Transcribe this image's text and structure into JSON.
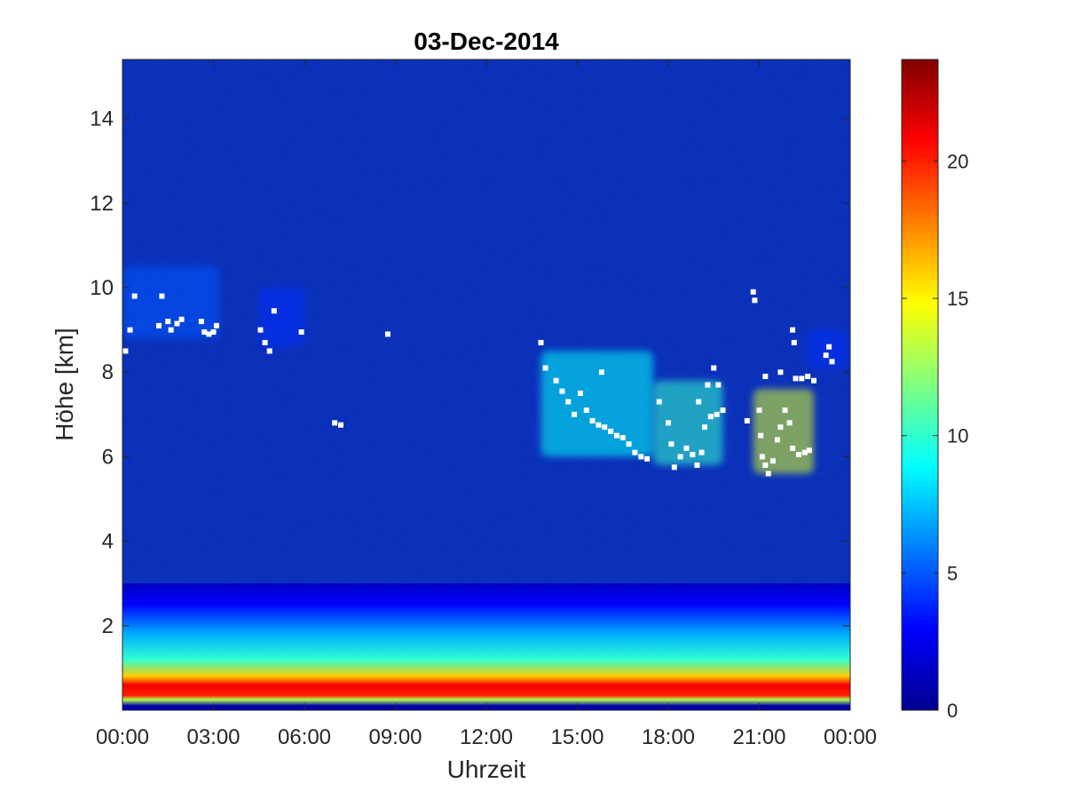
{
  "chart_data": {
    "type": "heatmap",
    "title": "03-Dec-2014",
    "xlabel": "Uhrzeit",
    "ylabel": "Höhe [km]",
    "x_range_hours": [
      0,
      24
    ],
    "ylim": [
      0,
      15.4
    ],
    "x_ticks": [
      {
        "value": 0,
        "label": "00:00"
      },
      {
        "value": 3,
        "label": "03:00"
      },
      {
        "value": 6,
        "label": "06:00"
      },
      {
        "value": 9,
        "label": "09:00"
      },
      {
        "value": 12,
        "label": "12:00"
      },
      {
        "value": 15,
        "label": "15:00"
      },
      {
        "value": 18,
        "label": "18:00"
      },
      {
        "value": 21,
        "label": "21:00"
      },
      {
        "value": 24,
        "label": "00:00"
      }
    ],
    "y_ticks": [
      {
        "value": 2,
        "label": "2"
      },
      {
        "value": 4,
        "label": "4"
      },
      {
        "value": 6,
        "label": "6"
      },
      {
        "value": 8,
        "label": "8"
      },
      {
        "value": 10,
        "label": "10"
      },
      {
        "value": 12,
        "label": "12"
      },
      {
        "value": 14,
        "label": "14"
      }
    ],
    "colorbar": {
      "colormap": "jet",
      "range": [
        0,
        23.7
      ],
      "ticks": [
        {
          "value": 0,
          "label": "0"
        },
        {
          "value": 5,
          "label": "5"
        },
        {
          "value": 10,
          "label": "10"
        },
        {
          "value": 15,
          "label": "15"
        },
        {
          "value": 20,
          "label": "20"
        }
      ]
    },
    "boundary_layer_profile": [
      {
        "height_km": 0.1,
        "value": 1
      },
      {
        "height_km": 0.25,
        "value": 13
      },
      {
        "height_km": 0.35,
        "value": 20
      },
      {
        "height_km": 0.6,
        "value": 21
      },
      {
        "height_km": 0.8,
        "value": 16
      },
      {
        "height_km": 1.2,
        "value": 10
      },
      {
        "height_km": 1.8,
        "value": 7
      },
      {
        "height_km": 2.5,
        "value": 3
      },
      {
        "height_km": 3.0,
        "value": 1.5
      }
    ],
    "cloud_layers": [
      {
        "x0": 0.0,
        "x1": 3.2,
        "base_km": 8.8,
        "top_km": 10.5,
        "value": 5
      },
      {
        "x0": 4.5,
        "x1": 6.0,
        "base_km": 8.6,
        "top_km": 10.0,
        "value": 4
      },
      {
        "x0": 13.8,
        "x1": 17.5,
        "base_km": 6.0,
        "top_km": 8.5,
        "value": 9
      },
      {
        "x0": 17.5,
        "x1": 19.8,
        "base_km": 5.8,
        "top_km": 7.8,
        "value": 10
      },
      {
        "x0": 20.8,
        "x1": 22.8,
        "base_km": 5.6,
        "top_km": 7.6,
        "value": 14
      },
      {
        "x0": 22.6,
        "x1": 23.9,
        "base_km": 8.1,
        "top_km": 9.0,
        "value": 4
      }
    ],
    "cloud_base_points": [
      {
        "x": 0.1,
        "y": 8.5
      },
      {
        "x": 0.25,
        "y": 9.0
      },
      {
        "x": 0.4,
        "y": 9.8
      },
      {
        "x": 1.3,
        "y": 9.8
      },
      {
        "x": 1.2,
        "y": 9.1
      },
      {
        "x": 1.5,
        "y": 9.2
      },
      {
        "x": 1.6,
        "y": 9.0
      },
      {
        "x": 1.8,
        "y": 9.15
      },
      {
        "x": 1.95,
        "y": 9.25
      },
      {
        "x": 2.6,
        "y": 9.2
      },
      {
        "x": 2.7,
        "y": 8.95
      },
      {
        "x": 2.85,
        "y": 8.9
      },
      {
        "x": 3.0,
        "y": 8.95
      },
      {
        "x": 3.1,
        "y": 9.1
      },
      {
        "x": 4.55,
        "y": 9.0
      },
      {
        "x": 4.7,
        "y": 8.7
      },
      {
        "x": 4.85,
        "y": 8.5
      },
      {
        "x": 5.0,
        "y": 9.45
      },
      {
        "x": 5.9,
        "y": 8.95
      },
      {
        "x": 7.0,
        "y": 6.8
      },
      {
        "x": 7.2,
        "y": 6.75
      },
      {
        "x": 8.75,
        "y": 8.9
      },
      {
        "x": 13.8,
        "y": 8.7
      },
      {
        "x": 13.95,
        "y": 8.1
      },
      {
        "x": 14.3,
        "y": 7.8
      },
      {
        "x": 14.5,
        "y": 7.55
      },
      {
        "x": 14.7,
        "y": 7.3
      },
      {
        "x": 14.9,
        "y": 7.0
      },
      {
        "x": 15.1,
        "y": 7.5
      },
      {
        "x": 15.3,
        "y": 7.1
      },
      {
        "x": 15.5,
        "y": 6.85
      },
      {
        "x": 15.7,
        "y": 6.75
      },
      {
        "x": 15.9,
        "y": 6.7
      },
      {
        "x": 16.1,
        "y": 6.6
      },
      {
        "x": 16.3,
        "y": 6.5
      },
      {
        "x": 16.5,
        "y": 6.45
      },
      {
        "x": 16.7,
        "y": 6.3
      },
      {
        "x": 16.9,
        "y": 6.1
      },
      {
        "x": 17.1,
        "y": 6.0
      },
      {
        "x": 17.3,
        "y": 5.95
      },
      {
        "x": 15.8,
        "y": 8.0
      },
      {
        "x": 17.7,
        "y": 7.3
      },
      {
        "x": 18.0,
        "y": 6.8
      },
      {
        "x": 18.1,
        "y": 6.3
      },
      {
        "x": 18.2,
        "y": 5.75
      },
      {
        "x": 18.4,
        "y": 6.0
      },
      {
        "x": 18.6,
        "y": 6.2
      },
      {
        "x": 18.8,
        "y": 6.05
      },
      {
        "x": 18.95,
        "y": 5.8
      },
      {
        "x": 19.1,
        "y": 6.1
      },
      {
        "x": 19.2,
        "y": 6.7
      },
      {
        "x": 19.4,
        "y": 6.95
      },
      {
        "x": 19.6,
        "y": 7.0
      },
      {
        "x": 19.8,
        "y": 7.1
      },
      {
        "x": 19.0,
        "y": 7.3
      },
      {
        "x": 19.3,
        "y": 7.7
      },
      {
        "x": 19.5,
        "y": 8.1
      },
      {
        "x": 19.65,
        "y": 7.7
      },
      {
        "x": 20.6,
        "y": 6.85
      },
      {
        "x": 20.8,
        "y": 9.9
      },
      {
        "x": 20.85,
        "y": 9.7
      },
      {
        "x": 21.0,
        "y": 7.1
      },
      {
        "x": 21.05,
        "y": 6.5
      },
      {
        "x": 21.1,
        "y": 6.0
      },
      {
        "x": 21.2,
        "y": 5.8
      },
      {
        "x": 21.3,
        "y": 5.6
      },
      {
        "x": 21.45,
        "y": 5.9
      },
      {
        "x": 21.6,
        "y": 6.4
      },
      {
        "x": 21.7,
        "y": 6.7
      },
      {
        "x": 21.2,
        "y": 7.9
      },
      {
        "x": 21.7,
        "y": 8.0
      },
      {
        "x": 21.85,
        "y": 7.1
      },
      {
        "x": 22.0,
        "y": 6.8
      },
      {
        "x": 22.1,
        "y": 6.2
      },
      {
        "x": 22.3,
        "y": 6.05
      },
      {
        "x": 22.5,
        "y": 6.1
      },
      {
        "x": 22.65,
        "y": 6.15
      },
      {
        "x": 22.2,
        "y": 7.85
      },
      {
        "x": 22.4,
        "y": 7.85
      },
      {
        "x": 22.6,
        "y": 7.9
      },
      {
        "x": 22.8,
        "y": 7.8
      },
      {
        "x": 22.1,
        "y": 9.0
      },
      {
        "x": 22.15,
        "y": 8.7
      },
      {
        "x": 23.2,
        "y": 8.4
      },
      {
        "x": 23.3,
        "y": 8.6
      },
      {
        "x": 23.4,
        "y": 8.25
      }
    ],
    "grid": false,
    "legend": "none"
  }
}
